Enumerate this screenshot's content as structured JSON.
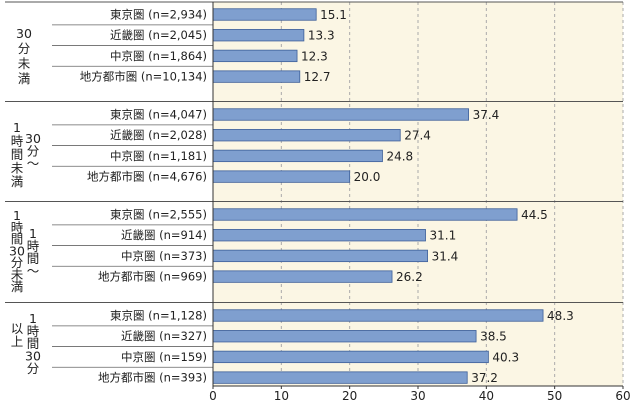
{
  "chart_data": {
    "type": "bar",
    "orientation": "horizontal",
    "title": "",
    "xlabel": "",
    "ylabel": "",
    "xlim": [
      0,
      60
    ],
    "x_ticks": [
      0,
      10,
      20,
      30,
      40,
      50,
      60
    ],
    "grid": true,
    "colors": {
      "bar": "#7f9fcf",
      "bar_edge": "#3d5f99",
      "plot_bg": "#fbf6e4",
      "grid": "#aaaaaa"
    },
    "groups": [
      {
        "label": "30分未満",
        "label_lines": [
          "30",
          "分",
          "未",
          "満"
        ],
        "categories": [
          "東京圏 (n=2,934)",
          "近畿圏 (n=2,045)",
          "中京圏 (n=1,864)",
          "地方都市圏 (n=10,134)"
        ],
        "values": [
          15.1,
          13.3,
          12.3,
          12.7
        ]
      },
      {
        "label": "1時間未満 30分〜",
        "label_lines": [
          "1",
          "時",
          "間",
          "未",
          "満"
        ],
        "label_lines_2": [
          "30",
          "分",
          "〜"
        ],
        "categories": [
          "東京圏 (n=4,047)",
          "近畿圏 (n=2,028)",
          "中京圏 (n=1,181)",
          "地方都市圏 (n=4,676)"
        ],
        "values": [
          37.4,
          27.4,
          24.8,
          20.0
        ]
      },
      {
        "label": "1時間30分未満 1時間〜",
        "label_lines": [
          "1",
          "時",
          "間",
          "30",
          "分",
          "未",
          "満"
        ],
        "label_lines_2": [
          "1",
          "時",
          "間",
          "〜"
        ],
        "categories": [
          "東京圏 (n=2,555)",
          "近畿圏 (n=914)",
          "中京圏 (n=373)",
          "地方都市圏 (n=969)"
        ],
        "values": [
          44.5,
          31.1,
          31.4,
          26.2
        ]
      },
      {
        "label": "1時間30分以上",
        "label_lines": [
          "以",
          "上"
        ],
        "label_lines_2": [
          "1",
          "時",
          "間",
          "30",
          "分"
        ],
        "categories": [
          "東京圏 (n=1,128)",
          "近畿圏 (n=327)",
          "中京圏 (n=159)",
          "地方都市圏 (n=393)"
        ],
        "values": [
          48.3,
          38.5,
          40.3,
          37.2
        ]
      }
    ]
  }
}
